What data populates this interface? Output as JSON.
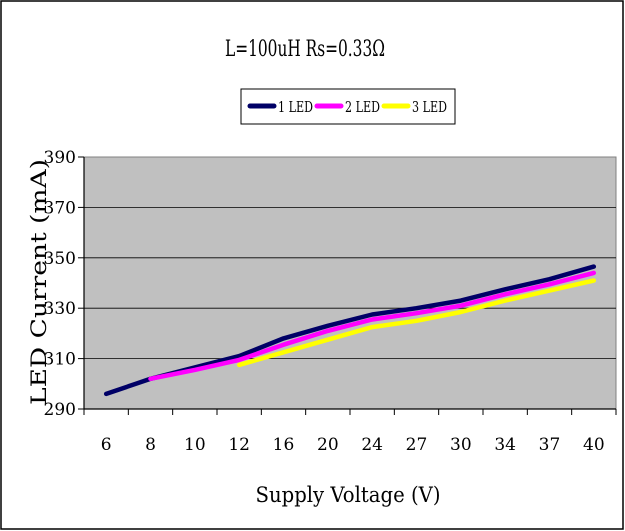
{
  "chart_data": {
    "type": "line",
    "title": "L=100uH Rs=0.33Ω",
    "xlabel": "Supply Voltage (V)",
    "ylabel": "LED Current (mA)",
    "categories": [
      "6",
      "8",
      "10",
      "12",
      "16",
      "20",
      "24",
      "27",
      "30",
      "34",
      "37",
      "40"
    ],
    "ylim": [
      290,
      390
    ],
    "yticks": [
      290,
      310,
      330,
      350,
      370,
      390
    ],
    "grid": true,
    "legend_position": "top-center",
    "plot_background": "#c0c0c0",
    "series": [
      {
        "name": "1 LED",
        "color": "#000066",
        "values": [
          296,
          302,
          306.5,
          311,
          318,
          323,
          327.5,
          330,
          333,
          337.5,
          341.5,
          346.5
        ]
      },
      {
        "name": "2 LED",
        "color": "#ff00ff",
        "values": [
          null,
          302,
          305.5,
          309.5,
          315.5,
          321,
          325.5,
          328,
          331,
          335.5,
          339.5,
          344
        ]
      },
      {
        "name": "3 LED",
        "color": "#ffff00",
        "values": [
          null,
          null,
          null,
          307.5,
          312.5,
          317.5,
          322.5,
          325,
          328.5,
          333,
          337,
          341
        ]
      }
    ]
  }
}
